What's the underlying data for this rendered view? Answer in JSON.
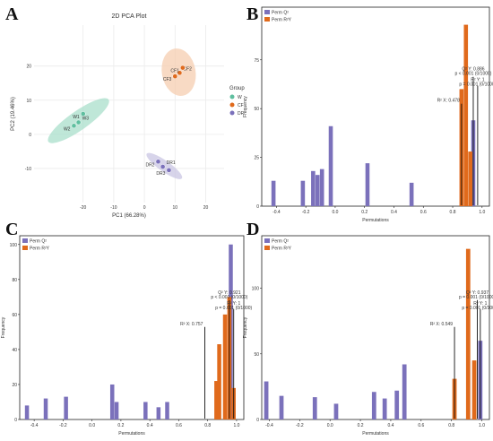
{
  "colors": {
    "purple": "#7b71bb",
    "orange": "#e06a1c",
    "teal": "#5fbf9f",
    "orange_light": "#f5cdb0",
    "purple_light": "#c9c5e3",
    "teal_light": "#a9dfcb",
    "pca_bg": "#ffffff",
    "grid": "#ebebeb"
  },
  "chart_data": [
    {
      "panel": "A",
      "type": "scatter",
      "title": "2D PCA Plot",
      "xlabel": "PC1 (66.28%)",
      "ylabel": "PC2 (19.46%)",
      "xlim": [
        -36,
        26
      ],
      "ylim": [
        -20,
        32
      ],
      "xticks": [
        -20,
        -10,
        0,
        10,
        20
      ],
      "yticks": [
        -10,
        0,
        10,
        20
      ],
      "legend": {
        "title": "Group",
        "position": "right",
        "entries": [
          "W",
          "CF",
          "DR"
        ]
      },
      "groups": [
        {
          "name": "W",
          "color": "#5fbf9f",
          "points": [
            [
              -23,
              2.5
            ],
            [
              -21.5,
              3.5
            ],
            [
              -20,
              6
            ]
          ],
          "labels": [
            "W2",
            "W3",
            "W1"
          ],
          "ellipse": {
            "cx": -21.5,
            "cy": 4,
            "rx": 12,
            "ry": 2.8,
            "angle": 35
          }
        },
        {
          "name": "CF",
          "color": "#e06a1c",
          "points": [
            [
              10,
              17
            ],
            [
              11.5,
              18
            ],
            [
              12.5,
              19.5
            ]
          ],
          "labels": [
            "CF3",
            "CF2",
            "CF1"
          ],
          "ellipse": {
            "cx": 11.2,
            "cy": 18.2,
            "rx": 5.5,
            "ry": 7,
            "angle": 10
          }
        },
        {
          "name": "DR",
          "color": "#7b71bb",
          "points": [
            [
              4.5,
              -8
            ],
            [
              6,
              -9.5
            ],
            [
              8,
              -10.5
            ]
          ],
          "labels": [
            "DR2",
            "DR1",
            "DR3"
          ],
          "ellipse": {
            "cx": 6.5,
            "cy": -9.3,
            "rx": 7,
            "ry": 1.6,
            "angle": -35
          }
        }
      ]
    },
    {
      "panel": "B",
      "type": "bar",
      "xlabel": "Permutations",
      "ylabel": "Frequency",
      "xlim": [
        -0.5,
        1.05
      ],
      "xticks": [
        -0.4,
        -0.2,
        0.0,
        0.2,
        0.4,
        0.6,
        0.8,
        1.0
      ],
      "xtick_labels": [
        "-0.4",
        "-0.2",
        "0.0",
        "0.2",
        "0.4",
        "0.6",
        "0.8",
        "1.0"
      ],
      "ylim": [
        0,
        102
      ],
      "yticks": [
        0,
        25,
        50,
        75
      ],
      "legend": [
        "Perm Q²",
        "Perm R²Y"
      ],
      "series": [
        {
          "name": "Perm Q²",
          "color": "#7b71bb",
          "bars": [
            [
              -0.42,
              13
            ],
            [
              -0.22,
              13
            ],
            [
              -0.15,
              18
            ],
            [
              -0.12,
              16
            ],
            [
              -0.09,
              19
            ],
            [
              -0.03,
              41
            ],
            [
              0.22,
              22
            ],
            [
              0.52,
              12
            ],
            [
              0.94,
              44
            ]
          ]
        },
        {
          "name": "Perm R²Y",
          "color": "#e06a1c",
          "bars": [
            [
              0.86,
              60
            ],
            [
              0.89,
              93
            ],
            [
              0.92,
              28
            ]
          ]
        }
      ],
      "annotations": [
        {
          "label": "Q² Y: 0.886",
          "x": 0.94
        },
        {
          "label": "p < 0.001 (0/1000)",
          "x": 0.94
        },
        {
          "label": "R² Y: 1",
          "x": 0.97
        },
        {
          "label": "p = 0.001 (0/1000)",
          "x": 0.97
        },
        {
          "label": "R² X: 0.478",
          "x": 0.86
        }
      ]
    },
    {
      "panel": "C",
      "type": "bar",
      "xlabel": "Permutations",
      "ylabel": "Frequency",
      "xlim": [
        -0.5,
        1.05
      ],
      "xticks": [
        -0.4,
        -0.2,
        0.0,
        0.2,
        0.4,
        0.6,
        0.8,
        1.0
      ],
      "xtick_labels": [
        "-0.4",
        "-0.2",
        "0.0",
        "0.2",
        "0.4",
        "0.6",
        "0.8",
        "1.0"
      ],
      "ylim": [
        0,
        105
      ],
      "yticks": [
        0,
        20,
        40,
        60,
        80,
        100
      ],
      "legend": [
        "Perm Q²",
        "Perm R²Y"
      ],
      "series": [
        {
          "name": "Perm Q²",
          "color": "#7b71bb",
          "bars": [
            [
              -0.45,
              8
            ],
            [
              -0.32,
              12
            ],
            [
              -0.18,
              13
            ],
            [
              0.14,
              20
            ],
            [
              0.17,
              10
            ],
            [
              0.37,
              10
            ],
            [
              0.46,
              7
            ],
            [
              0.52,
              10
            ],
            [
              0.96,
              100
            ]
          ]
        },
        {
          "name": "Perm R²Y",
          "color": "#e06a1c",
          "bars": [
            [
              0.86,
              22
            ],
            [
              0.88,
              43
            ],
            [
              0.92,
              60
            ],
            [
              0.95,
              70
            ],
            [
              0.98,
              18
            ]
          ]
        }
      ],
      "annotations": [
        {
          "label": "Q² Y: 0.921",
          "x": 0.95
        },
        {
          "label": "p < 0.001 (0/1000)",
          "x": 0.95
        },
        {
          "label": "R² Y: 1",
          "x": 0.98
        },
        {
          "label": "p = 0.001 (0/1000)",
          "x": 0.98
        },
        {
          "label": "R² X: 0.757",
          "x": 0.78
        }
      ]
    },
    {
      "panel": "D",
      "type": "bar",
      "xlabel": "Permutations",
      "ylabel": "Frequency",
      "xlim": [
        -0.45,
        1.05
      ],
      "xticks": [
        -0.4,
        -0.2,
        0.0,
        0.2,
        0.4,
        0.6,
        0.8,
        1.0
      ],
      "xtick_labels": [
        "-0.4",
        "-0.2",
        "0.0",
        "0.2",
        "0.4",
        "0.6",
        "0.8",
        "1.0"
      ],
      "ylim": [
        0,
        140
      ],
      "yticks": [
        0,
        50,
        100
      ],
      "legend": [
        "Perm Q²",
        "Perm R²Y"
      ],
      "series": [
        {
          "name": "Perm Q²",
          "color": "#7b71bb",
          "bars": [
            [
              -0.42,
              29
            ],
            [
              -0.32,
              18
            ],
            [
              -0.1,
              17
            ],
            [
              0.04,
              12
            ],
            [
              0.29,
              21
            ],
            [
              0.36,
              16
            ],
            [
              0.44,
              22
            ],
            [
              0.49,
              42
            ],
            [
              0.99,
              60
            ]
          ]
        },
        {
          "name": "Perm R²Y",
          "color": "#e06a1c",
          "bars": [
            [
              0.82,
              31
            ],
            [
              0.91,
              130
            ],
            [
              0.95,
              45
            ]
          ]
        }
      ],
      "annotations": [
        {
          "label": "Q² Y: 0.937",
          "x": 0.97
        },
        {
          "label": "p = 0.001 (0/1000)",
          "x": 0.97
        },
        {
          "label": "R² Y: 1",
          "x": 0.99
        },
        {
          "label": "p = 0.001 (0/1000)",
          "x": 0.99
        },
        {
          "label": "R² X: 0.549",
          "x": 0.82
        }
      ]
    }
  ]
}
